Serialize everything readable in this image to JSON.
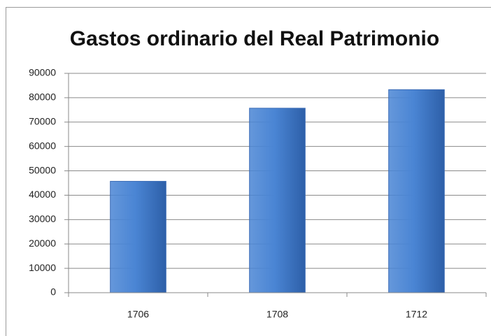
{
  "chart_data": {
    "type": "bar",
    "title": "Gastos ordinario del Real Patrimonio",
    "categories": [
      "1706",
      "1708",
      "1712"
    ],
    "values": [
      45700,
      75700,
      83300
    ],
    "color": "#4a85d4",
    "ylim": [
      0,
      90000
    ],
    "yticks": [
      0,
      10000,
      20000,
      30000,
      40000,
      50000,
      60000,
      70000,
      80000,
      90000
    ],
    "grid": true
  }
}
